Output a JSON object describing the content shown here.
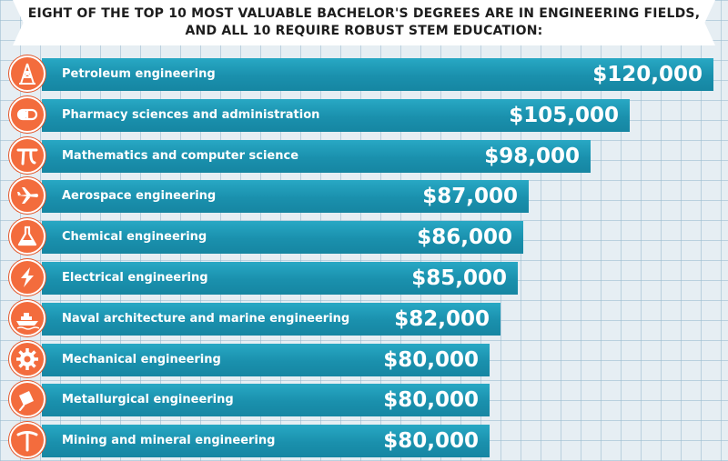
{
  "title": {
    "line1": "EIGHT OF THE TOP 10 MOST VALUABLE BACHELOR'S DEGREES ARE IN ENGINEERING FIELDS,",
    "line2": "AND ALL 10 REQUIRE ROBUST STEM EDUCATION:"
  },
  "colors": {
    "bar": "#1a90ad",
    "icon": "#f36c3d",
    "grid": "#e6eef3"
  },
  "chart_data": {
    "type": "bar",
    "orientation": "horizontal",
    "title": "EIGHT OF THE TOP 10 MOST VALUABLE BACHELOR'S DEGREES ARE IN ENGINEERING FIELDS, AND ALL 10 REQUIRE ROBUST STEM EDUCATION:",
    "xlim": [
      0,
      120000
    ],
    "categories": [
      "Petroleum engineering",
      "Pharmacy sciences and administration",
      "Mathematics and computer science",
      "Aerospace engineering",
      "Chemical engineering",
      "Electrical engineering",
      "Naval architecture and marine engineering",
      "Mechanical engineering",
      "Metallurgical engineering",
      "Mining and mineral engineering"
    ],
    "values": [
      120000,
      105000,
      98000,
      87000,
      86000,
      85000,
      82000,
      80000,
      80000,
      80000
    ],
    "value_labels": [
      "$120,000",
      "$105,000",
      "$98,000",
      "$87,000",
      "$86,000",
      "$85,000",
      "$82,000",
      "$80,000",
      "$80,000",
      "$80,000"
    ],
    "icons": [
      "oil-derrick-icon",
      "pill-capsule-icon",
      "pi-symbol-icon",
      "airplane-icon",
      "flask-icon",
      "lightning-bolt-icon",
      "ship-icon",
      "gear-icon",
      "ladle-icon",
      "pickaxe-icon"
    ]
  }
}
